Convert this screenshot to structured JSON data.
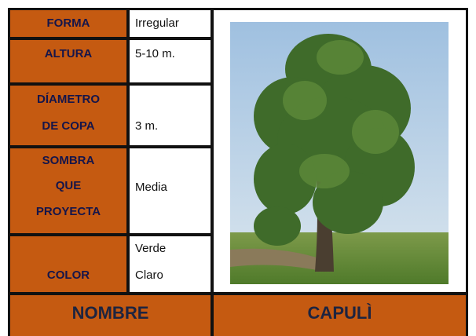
{
  "table": {
    "rows": [
      {
        "label": [
          "FORMA"
        ],
        "value": [
          "Irregular"
        ]
      },
      {
        "label": [
          "ALTURA"
        ],
        "value": [
          "5-10 m."
        ]
      },
      {
        "label": [
          "DÍAMETRO",
          "DE COPA"
        ],
        "value": [
          "3 m."
        ]
      },
      {
        "label": [
          "SOMBRA",
          "QUE",
          "PROYECTA"
        ],
        "value": [
          "Media"
        ]
      },
      {
        "label": [
          "COLOR"
        ],
        "value": [
          "Verde",
          "Claro"
        ]
      }
    ],
    "footer": {
      "label": "NOMBRE",
      "name": "CAPULÌ"
    }
  }
}
